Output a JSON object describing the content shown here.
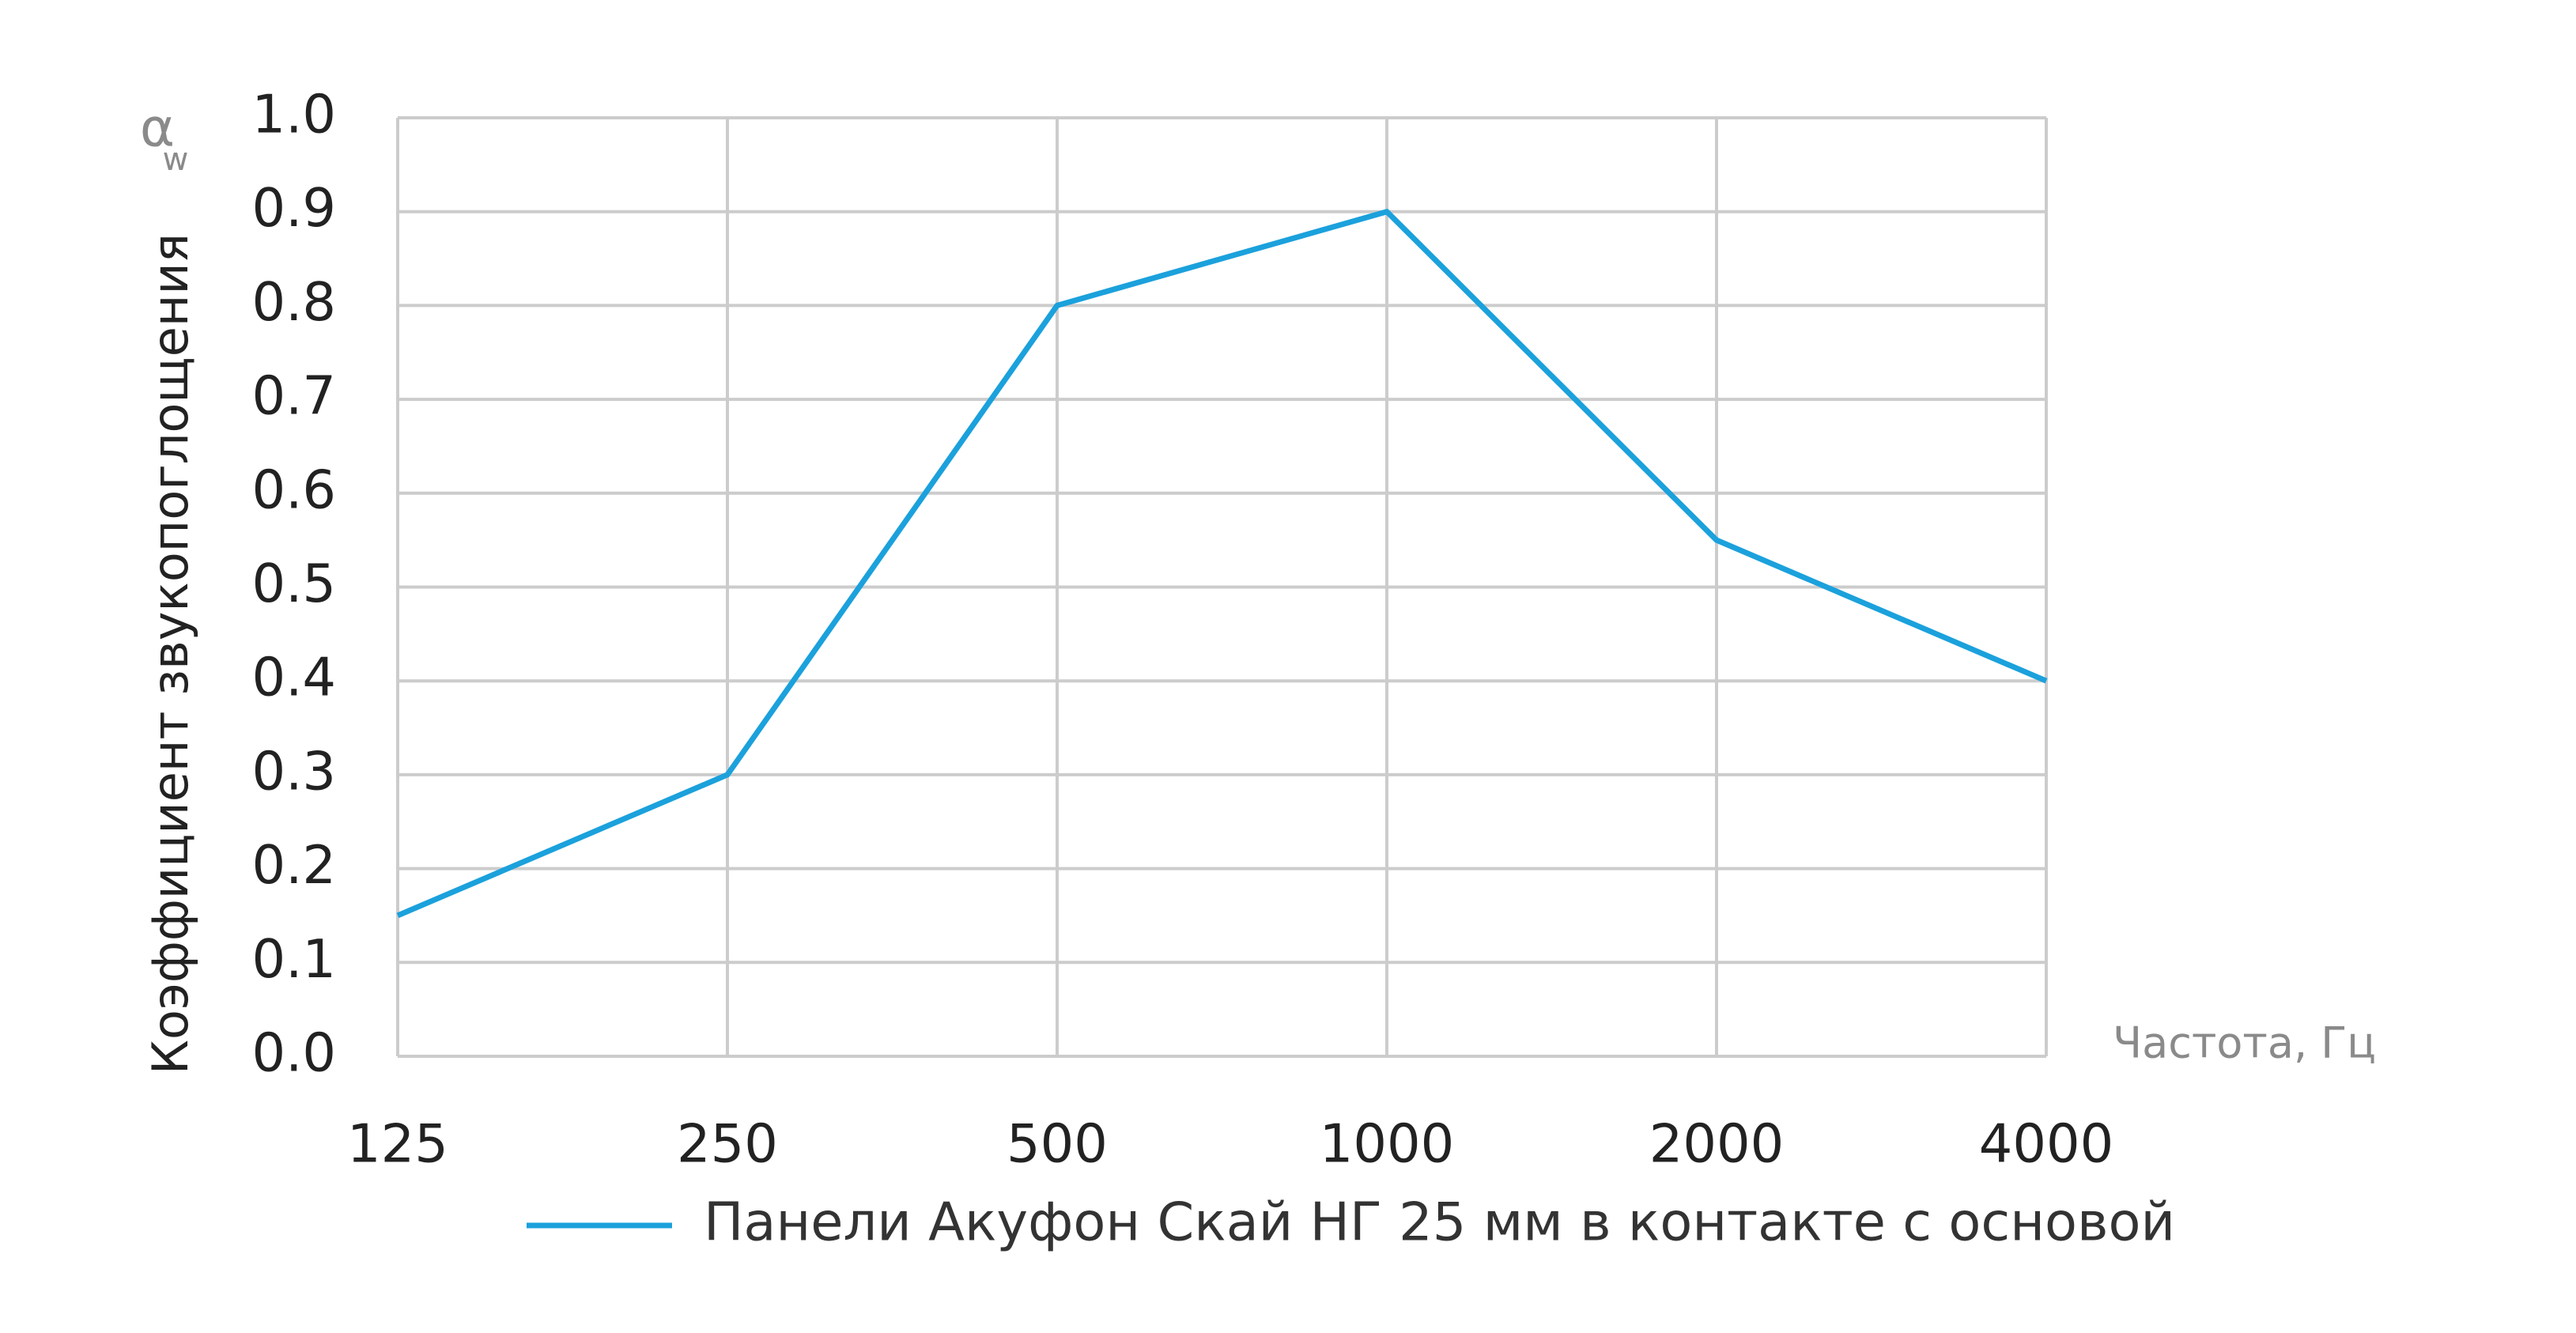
{
  "chart_data": {
    "type": "line",
    "y_label": "Коэффициент звукопоглощения",
    "y_symbol": "α",
    "y_symbol_subscript": "w",
    "x_label": "Частота, Гц",
    "categories": [
      "125",
      "250",
      "500",
      "1000",
      "2000",
      "4000"
    ],
    "series": [
      {
        "name": "Панели Акуфон Скай НГ 25 мм в контакте с основой",
        "color": "#1ba1dc",
        "values": [
          0.15,
          0.3,
          0.8,
          0.9,
          0.55,
          0.4
        ]
      }
    ],
    "ylim": [
      0,
      1
    ],
    "yticks": [
      {
        "value": 0,
        "label": "0.0"
      },
      0.1,
      0.2,
      0.3,
      0.4,
      0.5,
      0.6,
      0.7,
      0.8,
      0.9,
      {
        "value": 1,
        "label": "1.0"
      }
    ],
    "grid": true,
    "grid_color": "#cccccc"
  }
}
